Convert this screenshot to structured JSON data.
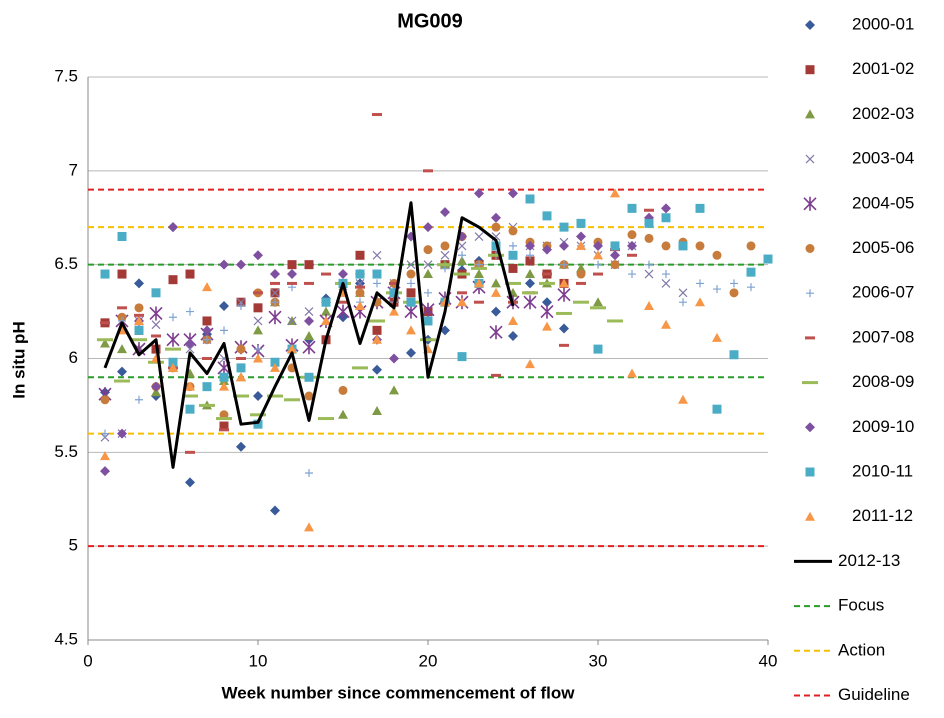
{
  "chart_data": {
    "type": "scatter",
    "title": "MG009",
    "x_label": "Week number since commencement of flow",
    "y_label": "In situ pH",
    "xlim": [
      0,
      40
    ],
    "xticks": [
      0,
      10,
      20,
      30,
      40
    ],
    "ylim": [
      4.5,
      7.5
    ],
    "yticks": [
      4.5,
      5,
      5.5,
      6,
      6.5,
      7,
      7.5
    ],
    "grid": true,
    "legend": "right",
    "series": [
      {
        "name": "2000-01",
        "color": "#3a5b9a",
        "marker": "diamond",
        "x": [
          1,
          2,
          3,
          4,
          5,
          6,
          7,
          8,
          9,
          10,
          11,
          12,
          13,
          14,
          15,
          16,
          17,
          18,
          19,
          20,
          21,
          22,
          23,
          24,
          25,
          26,
          27,
          28
        ],
        "values": [
          5.82,
          5.93,
          6.4,
          5.8,
          6.7,
          5.34,
          6.13,
          6.28,
          5.53,
          5.8,
          5.19,
          6.05,
          6.1,
          6.32,
          6.22,
          6.4,
          5.94,
          6.3,
          6.03,
          6.1,
          6.15,
          6.47,
          6.52,
          6.25,
          6.12,
          6.4,
          6.3,
          6.16
        ]
      },
      {
        "name": "2001-02",
        "color": "#a33a36",
        "marker": "square",
        "x": [
          1,
          2,
          3,
          4,
          5,
          6,
          7,
          8,
          9,
          10,
          11,
          12,
          13,
          14,
          15,
          16,
          17,
          18,
          19,
          20,
          21,
          22,
          23,
          24,
          25,
          26,
          27,
          28
        ],
        "values": [
          6.19,
          6.45,
          6.15,
          6.05,
          6.42,
          6.45,
          6.2,
          5.64,
          6.3,
          6.27,
          6.35,
          6.5,
          6.5,
          6.1,
          6.4,
          6.55,
          6.15,
          6.3,
          6.35,
          6.25,
          6.5,
          6.45,
          6.5,
          6.55,
          6.48,
          6.52,
          6.45,
          6.4
        ]
      },
      {
        "name": "2002-03",
        "color": "#7f9a45",
        "marker": "triangle",
        "x": [
          1,
          2,
          3,
          4,
          5,
          6,
          7,
          8,
          9,
          10,
          11,
          12,
          13,
          14,
          15,
          16,
          17,
          18,
          19,
          20,
          21,
          22,
          23,
          24,
          25,
          26,
          27,
          28,
          29,
          30
        ],
        "values": [
          6.08,
          6.05,
          6.05,
          5.82,
          5.95,
          5.92,
          5.75,
          5.88,
          5.9,
          6.15,
          6.3,
          6.2,
          6.12,
          6.25,
          5.7,
          6.35,
          5.72,
          5.83,
          6.3,
          6.45,
          6.5,
          6.52,
          6.45,
          6.4,
          6.35,
          6.45,
          6.4,
          6.5,
          6.48,
          6.3
        ]
      },
      {
        "name": "2003-04",
        "color": "#8479a8",
        "marker": "cross",
        "x": [
          1,
          2,
          3,
          4,
          5,
          6,
          7,
          8,
          9,
          10,
          11,
          12,
          13,
          14,
          15,
          16,
          17,
          18,
          19,
          20,
          21,
          22,
          23,
          24,
          25,
          26,
          27,
          28,
          29,
          30,
          31,
          32,
          33,
          34,
          35
        ],
        "values": [
          5.58,
          5.6,
          6.2,
          6.18,
          6.1,
          6.05,
          6.1,
          6.0,
          6.3,
          6.2,
          6.35,
          6.2,
          6.25,
          6.3,
          6.35,
          6.4,
          6.55,
          6.4,
          6.5,
          6.5,
          6.55,
          6.6,
          6.65,
          6.65,
          6.7,
          6.6,
          6.6,
          6.62,
          6.6,
          6.55,
          6.5,
          6.6,
          6.45,
          6.4,
          6.35
        ]
      },
      {
        "name": "2004-05",
        "color": "#7d3c8f",
        "marker": "asterisk",
        "x": [
          1,
          2,
          3,
          4,
          5,
          6,
          7,
          8,
          9,
          10,
          11,
          12,
          13,
          14,
          15,
          16,
          17,
          18,
          19,
          20,
          21,
          22,
          23,
          24,
          25,
          26,
          27,
          28
        ],
        "values": [
          5.81,
          6.2,
          6.05,
          6.24,
          6.1,
          6.1,
          6.13,
          5.95,
          6.06,
          6.04,
          6.22,
          6.07,
          6.06,
          6.2,
          6.25,
          6.25,
          6.3,
          6.35,
          6.25,
          6.26,
          6.32,
          6.3,
          6.38,
          6.14,
          6.3,
          6.3,
          6.25,
          6.34
        ]
      },
      {
        "name": "2005-06",
        "color": "#c77c3c",
        "marker": "circle",
        "x": [
          1,
          2,
          3,
          4,
          5,
          6,
          7,
          8,
          9,
          10,
          11,
          12,
          13,
          14,
          15,
          16,
          17,
          18,
          19,
          20,
          21,
          22,
          23,
          24,
          25,
          26,
          27,
          28,
          29,
          30,
          31,
          32,
          33,
          34,
          35,
          36,
          37,
          38,
          39
        ],
        "values": [
          5.78,
          6.22,
          6.27,
          5.85,
          5.95,
          5.85,
          6.1,
          5.7,
          6.05,
          6.35,
          6.3,
          5.95,
          5.8,
          6.3,
          5.83,
          6.35,
          6.3,
          6.4,
          6.45,
          6.58,
          6.6,
          6.65,
          6.5,
          6.7,
          6.68,
          6.62,
          6.6,
          6.5,
          6.45,
          6.62,
          6.5,
          6.66,
          6.64,
          6.6,
          6.62,
          6.6,
          6.55,
          6.35,
          6.6
        ]
      },
      {
        "name": "2006-07",
        "color": "#7ea3d2",
        "marker": "plus",
        "x": [
          1,
          2,
          3,
          4,
          5,
          6,
          7,
          8,
          9,
          10,
          11,
          12,
          13,
          14,
          15,
          16,
          17,
          18,
          19,
          20,
          21,
          22,
          23,
          24,
          25,
          26,
          27,
          28,
          29,
          30,
          31,
          32,
          33,
          34,
          35,
          36,
          37,
          38,
          39
        ],
        "values": [
          5.6,
          6.2,
          5.78,
          5.85,
          6.22,
          6.25,
          6.1,
          6.15,
          6.28,
          6.05,
          6.3,
          6.38,
          5.39,
          6.3,
          6.35,
          6.3,
          6.4,
          6.3,
          6.4,
          6.35,
          6.48,
          6.55,
          6.5,
          6.55,
          6.6,
          6.55,
          6.58,
          6.5,
          6.6,
          6.5,
          6.55,
          6.45,
          6.5,
          6.45,
          6.3,
          6.4,
          6.37,
          6.4,
          6.38
        ]
      },
      {
        "name": "2007-08",
        "color": "#c0504d",
        "marker": "dash",
        "x": [
          1,
          2,
          3,
          4,
          5,
          6,
          7,
          8,
          9,
          10,
          11,
          12,
          13,
          14,
          15,
          16,
          17,
          18,
          19,
          20,
          21,
          22,
          23,
          24,
          25,
          26,
          27,
          28,
          29,
          30,
          31,
          32,
          33
        ],
        "values": [
          6.19,
          6.27,
          6.23,
          6.12,
          5.95,
          5.5,
          6.0,
          5.62,
          6.0,
          6.35,
          6.4,
          6.4,
          6.4,
          6.45,
          6.3,
          6.38,
          7.3,
          6.4,
          6.3,
          7.0,
          6.3,
          6.35,
          6.3,
          5.91,
          6.3,
          6.35,
          6.45,
          6.07,
          6.4,
          6.45,
          6.58,
          6.55,
          6.79
        ]
      },
      {
        "name": "2008-09",
        "color": "#9bbb59",
        "marker": "longdash",
        "x": [
          1,
          2,
          3,
          4,
          5,
          6,
          7,
          8,
          9,
          10,
          11,
          12,
          13,
          14,
          15,
          16,
          17,
          18,
          19,
          20,
          21,
          22,
          23,
          24,
          25,
          26,
          27,
          28,
          29,
          30,
          31
        ],
        "values": [
          6.1,
          5.88,
          6.1,
          5.98,
          6.05,
          5.8,
          5.75,
          5.68,
          5.8,
          5.7,
          5.8,
          5.78,
          5.9,
          5.68,
          6.4,
          5.95,
          6.2,
          6.35,
          6.3,
          6.1,
          6.5,
          6.45,
          6.48,
          6.55,
          6.4,
          6.35,
          6.4,
          6.24,
          6.3,
          6.27,
          6.2
        ]
      },
      {
        "name": "2009-10",
        "color": "#7f4fa0",
        "marker": "diamond",
        "x": [
          1,
          2,
          3,
          4,
          5,
          6,
          7,
          8,
          9,
          10,
          11,
          12,
          13,
          14,
          15,
          16,
          17,
          18,
          19,
          20,
          21,
          22,
          23,
          24,
          25,
          26,
          27,
          28,
          29,
          30,
          31,
          32,
          33,
          34
        ],
        "values": [
          5.4,
          5.6,
          6.2,
          5.85,
          6.7,
          6.08,
          6.15,
          6.5,
          6.5,
          6.55,
          6.45,
          6.45,
          6.2,
          6.3,
          6.45,
          6.45,
          6.1,
          6.0,
          6.65,
          6.7,
          6.78,
          6.65,
          6.88,
          6.75,
          6.88,
          6.6,
          6.58,
          6.6,
          6.65,
          6.6,
          6.55,
          6.6,
          6.75,
          6.8
        ]
      },
      {
        "name": "2010-11",
        "color": "#4bacc6",
        "marker": "square",
        "x": [
          1,
          2,
          3,
          4,
          5,
          6,
          7,
          8,
          9,
          10,
          11,
          12,
          13,
          14,
          15,
          16,
          17,
          18,
          19,
          20,
          21,
          22,
          23,
          24,
          25,
          26,
          27,
          28,
          29,
          30,
          31,
          32,
          33,
          34,
          35,
          36,
          37,
          38,
          39,
          40
        ],
        "values": [
          6.45,
          6.65,
          6.15,
          6.35,
          5.98,
          5.73,
          5.85,
          5.9,
          5.95,
          5.65,
          5.98,
          6.05,
          5.9,
          6.3,
          6.4,
          6.45,
          6.45,
          6.35,
          6.3,
          6.2,
          6.3,
          6.01,
          6.4,
          6.6,
          6.55,
          6.85,
          6.76,
          6.7,
          6.72,
          6.05,
          6.6,
          6.8,
          6.72,
          6.75,
          6.6,
          6.8,
          5.73,
          6.02,
          6.46,
          6.53
        ]
      },
      {
        "name": "2011-12",
        "color": "#f79646",
        "marker": "triangle",
        "x": [
          1,
          2,
          3,
          4,
          5,
          6,
          7,
          8,
          9,
          10,
          11,
          12,
          13,
          14,
          15,
          16,
          17,
          18,
          19,
          20,
          21,
          22,
          23,
          24,
          25,
          26,
          27,
          28,
          29,
          30,
          31,
          32,
          33,
          34,
          35,
          36,
          37
        ],
        "values": [
          5.48,
          6.15,
          6.2,
          6.0,
          5.95,
          5.85,
          6.38,
          5.85,
          5.9,
          6.0,
          5.95,
          6.05,
          5.1,
          6.2,
          6.35,
          6.28,
          6.1,
          6.25,
          6.15,
          6.05,
          6.3,
          6.3,
          6.4,
          6.35,
          6.2,
          5.97,
          6.17,
          6.4,
          6.6,
          6.55,
          6.88,
          5.92,
          6.28,
          6.18,
          5.78,
          6.3,
          6.11
        ]
      },
      {
        "name": "2012-13",
        "color": "#000000",
        "marker": "line",
        "x": [
          1,
          2,
          3,
          4,
          5,
          6,
          7,
          8,
          9,
          10,
          11,
          12,
          13,
          14,
          15,
          16,
          17,
          18,
          19,
          20,
          21,
          22,
          23,
          24,
          25
        ],
        "values": [
          5.95,
          6.19,
          6.02,
          6.1,
          5.42,
          6.03,
          5.92,
          6.08,
          5.65,
          5.66,
          5.85,
          6.03,
          5.67,
          6.1,
          6.4,
          6.08,
          6.35,
          6.27,
          6.83,
          5.9,
          6.25,
          6.75,
          6.7,
          6.63,
          6.28
        ]
      },
      {
        "name": "Focus",
        "color": "#2a9c2a",
        "marker": "hline",
        "values": [
          6.5,
          5.9
        ]
      },
      {
        "name": "Action",
        "color": "#f5c000",
        "marker": "hline",
        "values": [
          6.7,
          5.6
        ]
      },
      {
        "name": "Guideline",
        "color": "#e02020",
        "marker": "hline",
        "values": [
          6.9,
          5.0
        ]
      }
    ]
  }
}
